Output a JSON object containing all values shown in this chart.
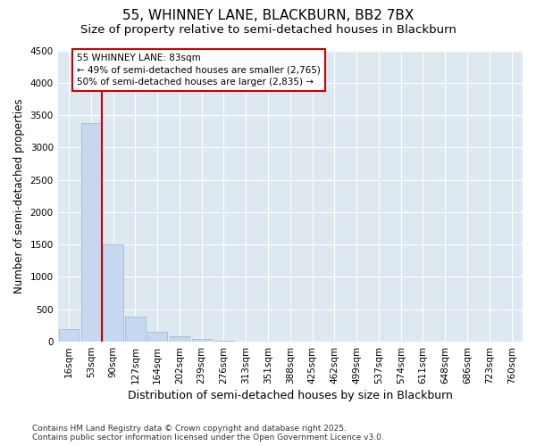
{
  "title1": "55, WHINNEY LANE, BLACKBURN, BB2 7BX",
  "title2": "Size of property relative to semi-detached houses in Blackburn",
  "xlabel": "Distribution of semi-detached houses by size in Blackburn",
  "ylabel": "Number of semi-detached properties",
  "categories": [
    "16sqm",
    "53sqm",
    "90sqm",
    "127sqm",
    "164sqm",
    "202sqm",
    "239sqm",
    "276sqm",
    "313sqm",
    "351sqm",
    "388sqm",
    "425sqm",
    "462sqm",
    "499sqm",
    "537sqm",
    "574sqm",
    "611sqm",
    "648sqm",
    "686sqm",
    "723sqm",
    "760sqm"
  ],
  "values": [
    200,
    3380,
    1500,
    380,
    150,
    80,
    40,
    15,
    5,
    2,
    1,
    1,
    0,
    0,
    0,
    0,
    0,
    0,
    0,
    0,
    0
  ],
  "bar_color": "#c5d8ef",
  "bar_edge_color": "#a0bcd8",
  "vline_color": "#cc0000",
  "vline_pos": 1.5,
  "annotation_text": "55 WHINNEY LANE: 83sqm\n← 49% of semi-detached houses are smaller (2,765)\n50% of semi-detached houses are larger (2,835) →",
  "annotation_box_color": "#ffffff",
  "annotation_box_edge": "#cc0000",
  "ylim": [
    0,
    4500
  ],
  "yticks": [
    0,
    500,
    1000,
    1500,
    2000,
    2500,
    3000,
    3500,
    4000,
    4500
  ],
  "fig_bg_color": "#ffffff",
  "plot_bg_color": "#dde8f0",
  "grid_color": "#ffffff",
  "footer": "Contains HM Land Registry data © Crown copyright and database right 2025.\nContains public sector information licensed under the Open Government Licence v3.0.",
  "title1_fontsize": 11,
  "title2_fontsize": 9.5,
  "xlabel_fontsize": 9,
  "ylabel_fontsize": 8.5,
  "tick_fontsize": 7.5,
  "annotation_fontsize": 7.5,
  "footer_fontsize": 6.5
}
